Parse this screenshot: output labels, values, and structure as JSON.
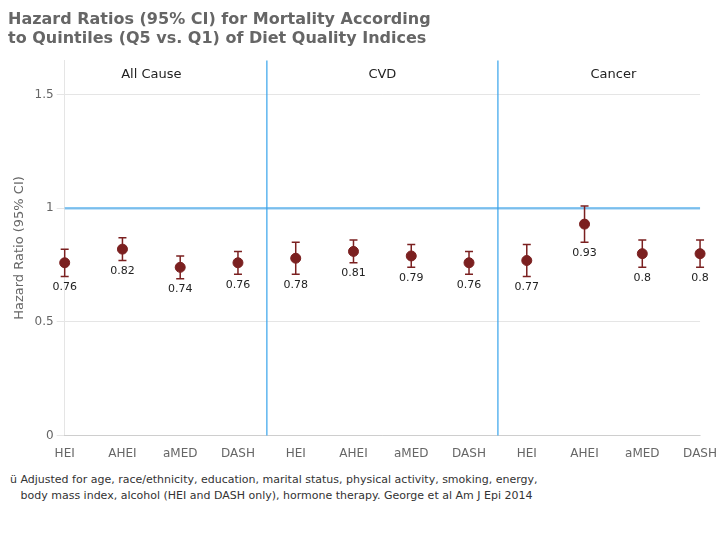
{
  "chart_data": {
    "type": "errorbar",
    "title": [
      "Hazard Ratios (95% CI) for Mortality According",
      "to Quintiles (Q5 vs. Q1) of Diet Quality Indices"
    ],
    "ylabel": "Hazard Ratio (95% CI)",
    "groups": [
      "All Cause",
      "CVD",
      "Cancer"
    ],
    "categories": [
      "HEI",
      "AHEI",
      "aMED",
      "DASH",
      "HEI",
      "AHEI",
      "aMED",
      "DASH",
      "HEI",
      "AHEI",
      "aMED",
      "DASH"
    ],
    "values": [
      0.76,
      0.82,
      0.74,
      0.76,
      0.78,
      0.81,
      0.79,
      0.76,
      0.77,
      0.93,
      0.8,
      0.8
    ],
    "value_labels": [
      "0.76",
      "0.82",
      "0.74",
      "0.76",
      "0.78",
      "0.81",
      "0.79",
      "0.76",
      "0.77",
      "0.93",
      "0.8",
      "0.8"
    ],
    "ci_lower": [
      0.7,
      0.77,
      0.69,
      0.71,
      0.71,
      0.76,
      0.74,
      0.71,
      0.7,
      0.85,
      0.74,
      0.74
    ],
    "ci_upper": [
      0.82,
      0.87,
      0.79,
      0.81,
      0.85,
      0.86,
      0.84,
      0.81,
      0.84,
      1.01,
      0.86,
      0.86
    ],
    "reference_line": 1.0,
    "color": "#7B2020",
    "data_labels": true,
    "ylim": [
      0,
      1.65
    ],
    "yticks": [
      0,
      0.5,
      1,
      1.5
    ],
    "grid": true,
    "footnote": [
      "ü Adjusted for age, race/ethnicity, education, marital status, physical activity, smoking, energy,",
      "   body mass index, alcohol (HEI and DASH only), hormone therapy. George et al Am J Epi 2014"
    ]
  }
}
